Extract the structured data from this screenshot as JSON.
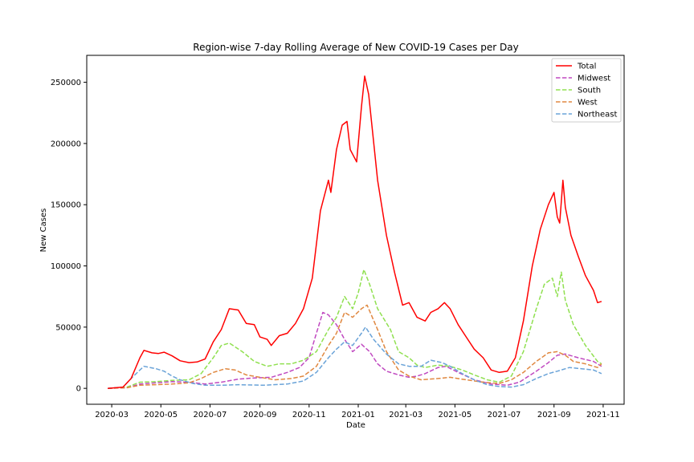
{
  "chart_data": {
    "type": "line",
    "title": "Region-wise 7-day Rolling Average of New COVID-19 Cases per Day",
    "xlabel": "Date",
    "ylabel": "New Cases",
    "x_range": [
      "2020-01-30",
      "2021-11-27"
    ],
    "ylim": [
      -13000,
      272000
    ],
    "x_ticks": [
      {
        "date": "2020-03-01",
        "label": "2020-03"
      },
      {
        "date": "2020-05-01",
        "label": "2020-05"
      },
      {
        "date": "2020-07-01",
        "label": "2020-07"
      },
      {
        "date": "2020-09-01",
        "label": "2020-09"
      },
      {
        "date": "2020-11-01",
        "label": "2020-11"
      },
      {
        "date": "2021-01-01",
        "label": "2021-01"
      },
      {
        "date": "2021-03-01",
        "label": "2021-03"
      },
      {
        "date": "2021-05-01",
        "label": "2021-05"
      },
      {
        "date": "2021-07-01",
        "label": "2021-07"
      },
      {
        "date": "2021-09-01",
        "label": "2021-09"
      },
      {
        "date": "2021-11-01",
        "label": "2021-11"
      }
    ],
    "y_ticks": [
      0,
      50000,
      100000,
      150000,
      200000,
      250000
    ],
    "legend_position": "top-right",
    "grid": false,
    "series": [
      {
        "name": "Total",
        "color": "#ff0000",
        "dashed": false,
        "points": [
          [
            "2020-02-25",
            0
          ],
          [
            "2020-03-15",
            1000
          ],
          [
            "2020-03-25",
            8000
          ],
          [
            "2020-04-05",
            25000
          ],
          [
            "2020-04-10",
            31000
          ],
          [
            "2020-04-20",
            29000
          ],
          [
            "2020-04-28",
            28500
          ],
          [
            "2020-05-05",
            29500
          ],
          [
            "2020-05-15",
            26500
          ],
          [
            "2020-05-25",
            22500
          ],
          [
            "2020-06-05",
            21000
          ],
          [
            "2020-06-15",
            21500
          ],
          [
            "2020-06-25",
            24000
          ],
          [
            "2020-07-05",
            38000
          ],
          [
            "2020-07-15",
            48000
          ],
          [
            "2020-07-25",
            65000
          ],
          [
            "2020-08-05",
            64000
          ],
          [
            "2020-08-15",
            53000
          ],
          [
            "2020-08-25",
            52000
          ],
          [
            "2020-09-01",
            42000
          ],
          [
            "2020-09-10",
            40000
          ],
          [
            "2020-09-15",
            35000
          ],
          [
            "2020-09-25",
            43000
          ],
          [
            "2020-10-05",
            45000
          ],
          [
            "2020-10-15",
            53000
          ],
          [
            "2020-10-25",
            65000
          ],
          [
            "2020-11-05",
            90000
          ],
          [
            "2020-11-15",
            145000
          ],
          [
            "2020-11-25",
            170000
          ],
          [
            "2020-11-28",
            160000
          ],
          [
            "2020-12-05",
            195000
          ],
          [
            "2020-12-12",
            215000
          ],
          [
            "2020-12-18",
            218000
          ],
          [
            "2020-12-22",
            195000
          ],
          [
            "2020-12-30",
            185000
          ],
          [
            "2021-01-05",
            230000
          ],
          [
            "2021-01-09",
            255000
          ],
          [
            "2021-01-14",
            240000
          ],
          [
            "2021-01-25",
            170000
          ],
          [
            "2021-02-05",
            125000
          ],
          [
            "2021-02-15",
            95000
          ],
          [
            "2021-02-25",
            68000
          ],
          [
            "2021-03-05",
            70000
          ],
          [
            "2021-03-15",
            58000
          ],
          [
            "2021-03-25",
            55000
          ],
          [
            "2021-04-01",
            62000
          ],
          [
            "2021-04-10",
            65000
          ],
          [
            "2021-04-18",
            70000
          ],
          [
            "2021-04-25",
            65000
          ],
          [
            "2021-05-05",
            52000
          ],
          [
            "2021-05-15",
            42000
          ],
          [
            "2021-05-25",
            32000
          ],
          [
            "2021-06-05",
            25000
          ],
          [
            "2021-06-15",
            15000
          ],
          [
            "2021-06-25",
            13000
          ],
          [
            "2021-07-05",
            14000
          ],
          [
            "2021-07-15",
            25000
          ],
          [
            "2021-07-25",
            55000
          ],
          [
            "2021-08-05",
            100000
          ],
          [
            "2021-08-15",
            130000
          ],
          [
            "2021-08-25",
            150000
          ],
          [
            "2021-09-01",
            160000
          ],
          [
            "2021-09-05",
            140000
          ],
          [
            "2021-09-08",
            135000
          ],
          [
            "2021-09-12",
            170000
          ],
          [
            "2021-09-15",
            148000
          ],
          [
            "2021-09-22",
            125000
          ],
          [
            "2021-10-01",
            108000
          ],
          [
            "2021-10-10",
            92000
          ],
          [
            "2021-10-20",
            80000
          ],
          [
            "2021-10-25",
            70000
          ],
          [
            "2021-10-30",
            71000
          ]
        ]
      },
      {
        "name": "Midwest",
        "color": "#c049c0",
        "dashed": true,
        "points": [
          [
            "2020-02-25",
            0
          ],
          [
            "2020-03-20",
            500
          ],
          [
            "2020-04-05",
            3500
          ],
          [
            "2020-04-25",
            4500
          ],
          [
            "2020-05-15",
            5500
          ],
          [
            "2020-06-05",
            5000
          ],
          [
            "2020-06-25",
            3500
          ],
          [
            "2020-07-15",
            5000
          ],
          [
            "2020-08-05",
            7500
          ],
          [
            "2020-08-25",
            8500
          ],
          [
            "2020-09-15",
            9000
          ],
          [
            "2020-10-05",
            13000
          ],
          [
            "2020-10-20",
            17000
          ],
          [
            "2020-11-01",
            25000
          ],
          [
            "2020-11-10",
            45000
          ],
          [
            "2020-11-18",
            62000
          ],
          [
            "2020-11-25",
            60000
          ],
          [
            "2020-12-05",
            52000
          ],
          [
            "2020-12-15",
            40000
          ],
          [
            "2020-12-25",
            30000
          ],
          [
            "2021-01-05",
            36000
          ],
          [
            "2021-01-15",
            30000
          ],
          [
            "2021-01-25",
            20000
          ],
          [
            "2021-02-05",
            14000
          ],
          [
            "2021-02-20",
            11000
          ],
          [
            "2021-03-05",
            9000
          ],
          [
            "2021-03-15",
            10000
          ],
          [
            "2021-03-25",
            12000
          ],
          [
            "2021-04-10",
            17000
          ],
          [
            "2021-04-20",
            18000
          ],
          [
            "2021-05-05",
            13000
          ],
          [
            "2021-05-25",
            7000
          ],
          [
            "2021-06-15",
            3500
          ],
          [
            "2021-07-05",
            2500
          ],
          [
            "2021-07-20",
            5000
          ],
          [
            "2021-08-10",
            14000
          ],
          [
            "2021-08-25",
            21000
          ],
          [
            "2021-09-05",
            27000
          ],
          [
            "2021-09-15",
            28000
          ],
          [
            "2021-10-01",
            25000
          ],
          [
            "2021-10-20",
            22000
          ],
          [
            "2021-10-30",
            18000
          ]
        ]
      },
      {
        "name": "South",
        "color": "#90e050",
        "dashed": true,
        "points": [
          [
            "2020-02-25",
            0
          ],
          [
            "2020-03-20",
            1000
          ],
          [
            "2020-04-05",
            5000
          ],
          [
            "2020-04-25",
            5500
          ],
          [
            "2020-05-15",
            6500
          ],
          [
            "2020-06-05",
            7000
          ],
          [
            "2020-06-20",
            12000
          ],
          [
            "2020-07-05",
            25000
          ],
          [
            "2020-07-15",
            35000
          ],
          [
            "2020-07-25",
            37000
          ],
          [
            "2020-08-10",
            30000
          ],
          [
            "2020-08-25",
            22000
          ],
          [
            "2020-09-10",
            18000
          ],
          [
            "2020-09-25",
            20000
          ],
          [
            "2020-10-10",
            20000
          ],
          [
            "2020-10-25",
            23000
          ],
          [
            "2020-11-10",
            30000
          ],
          [
            "2020-11-25",
            48000
          ],
          [
            "2020-12-05",
            58000
          ],
          [
            "2020-12-15",
            75000
          ],
          [
            "2020-12-25",
            65000
          ],
          [
            "2021-01-01",
            78000
          ],
          [
            "2021-01-08",
            97000
          ],
          [
            "2021-01-15",
            85000
          ],
          [
            "2021-01-25",
            65000
          ],
          [
            "2021-02-10",
            48000
          ],
          [
            "2021-02-20",
            30000
          ],
          [
            "2021-03-05",
            25000
          ],
          [
            "2021-03-15",
            19000
          ],
          [
            "2021-03-25",
            17000
          ],
          [
            "2021-04-10",
            19000
          ],
          [
            "2021-04-25",
            18000
          ],
          [
            "2021-05-10",
            15000
          ],
          [
            "2021-05-25",
            11000
          ],
          [
            "2021-06-10",
            7000
          ],
          [
            "2021-06-25",
            5000
          ],
          [
            "2021-07-10",
            10000
          ],
          [
            "2021-07-25",
            30000
          ],
          [
            "2021-08-10",
            65000
          ],
          [
            "2021-08-20",
            85000
          ],
          [
            "2021-08-30",
            90000
          ],
          [
            "2021-09-05",
            75000
          ],
          [
            "2021-09-10",
            95000
          ],
          [
            "2021-09-15",
            72000
          ],
          [
            "2021-09-25",
            52000
          ],
          [
            "2021-10-10",
            35000
          ],
          [
            "2021-10-25",
            22000
          ],
          [
            "2021-10-30",
            20000
          ]
        ]
      },
      {
        "name": "West",
        "color": "#e08840",
        "dashed": true,
        "points": [
          [
            "2020-02-25",
            0
          ],
          [
            "2020-03-20",
            500
          ],
          [
            "2020-04-05",
            2500
          ],
          [
            "2020-04-25",
            3000
          ],
          [
            "2020-05-15",
            3500
          ],
          [
            "2020-06-05",
            4500
          ],
          [
            "2020-06-20",
            8000
          ],
          [
            "2020-07-05",
            13000
          ],
          [
            "2020-07-20",
            16000
          ],
          [
            "2020-08-01",
            15000
          ],
          [
            "2020-08-15",
            11000
          ],
          [
            "2020-09-01",
            9000
          ],
          [
            "2020-09-20",
            7000
          ],
          [
            "2020-10-10",
            8000
          ],
          [
            "2020-10-25",
            10000
          ],
          [
            "2020-11-10",
            18000
          ],
          [
            "2020-11-25",
            35000
          ],
          [
            "2020-12-05",
            45000
          ],
          [
            "2020-12-15",
            62000
          ],
          [
            "2020-12-25",
            58000
          ],
          [
            "2021-01-05",
            65000
          ],
          [
            "2021-01-12",
            68000
          ],
          [
            "2021-01-25",
            48000
          ],
          [
            "2021-02-05",
            30000
          ],
          [
            "2021-02-20",
            15000
          ],
          [
            "2021-03-05",
            10000
          ],
          [
            "2021-03-20",
            7000
          ],
          [
            "2021-04-10",
            8000
          ],
          [
            "2021-04-25",
            9000
          ],
          [
            "2021-05-15",
            7000
          ],
          [
            "2021-06-05",
            5000
          ],
          [
            "2021-06-25",
            4000
          ],
          [
            "2021-07-10",
            7000
          ],
          [
            "2021-07-25",
            13000
          ],
          [
            "2021-08-10",
            22000
          ],
          [
            "2021-08-25",
            29000
          ],
          [
            "2021-09-05",
            30000
          ],
          [
            "2021-09-15",
            27000
          ],
          [
            "2021-09-25",
            22000
          ],
          [
            "2021-10-10",
            20000
          ],
          [
            "2021-10-25",
            17000
          ],
          [
            "2021-10-30",
            20000
          ]
        ]
      },
      {
        "name": "Northeast",
        "color": "#6aa3d8",
        "dashed": true,
        "points": [
          [
            "2020-02-25",
            0
          ],
          [
            "2020-03-15",
            1000
          ],
          [
            "2020-03-25",
            8000
          ],
          [
            "2020-04-05",
            15000
          ],
          [
            "2020-04-10",
            18000
          ],
          [
            "2020-04-25",
            16000
          ],
          [
            "2020-05-05",
            14000
          ],
          [
            "2020-05-15",
            10000
          ],
          [
            "2020-05-25",
            7000
          ],
          [
            "2020-06-10",
            4000
          ],
          [
            "2020-06-25",
            2500
          ],
          [
            "2020-07-15",
            2500
          ],
          [
            "2020-08-05",
            3000
          ],
          [
            "2020-09-05",
            2500
          ],
          [
            "2020-10-05",
            3500
          ],
          [
            "2020-10-25",
            6000
          ],
          [
            "2020-11-10",
            13000
          ],
          [
            "2020-11-25",
            25000
          ],
          [
            "2020-12-05",
            32000
          ],
          [
            "2020-12-15",
            38000
          ],
          [
            "2020-12-25",
            35000
          ],
          [
            "2021-01-05",
            45000
          ],
          [
            "2021-01-10",
            50000
          ],
          [
            "2021-01-20",
            40000
          ],
          [
            "2021-02-05",
            28000
          ],
          [
            "2021-02-20",
            20000
          ],
          [
            "2021-03-05",
            18000
          ],
          [
            "2021-03-20",
            18000
          ],
          [
            "2021-04-01",
            23000
          ],
          [
            "2021-04-15",
            21000
          ],
          [
            "2021-04-25",
            18000
          ],
          [
            "2021-05-10",
            12000
          ],
          [
            "2021-05-25",
            7000
          ],
          [
            "2021-06-10",
            3000
          ],
          [
            "2021-06-25",
            1500
          ],
          [
            "2021-07-10",
            1000
          ],
          [
            "2021-07-25",
            3000
          ],
          [
            "2021-08-10",
            8000
          ],
          [
            "2021-08-25",
            12000
          ],
          [
            "2021-09-05",
            14000
          ],
          [
            "2021-09-20",
            17000
          ],
          [
            "2021-10-05",
            16000
          ],
          [
            "2021-10-20",
            15000
          ],
          [
            "2021-10-30",
            12000
          ]
        ]
      }
    ]
  }
}
